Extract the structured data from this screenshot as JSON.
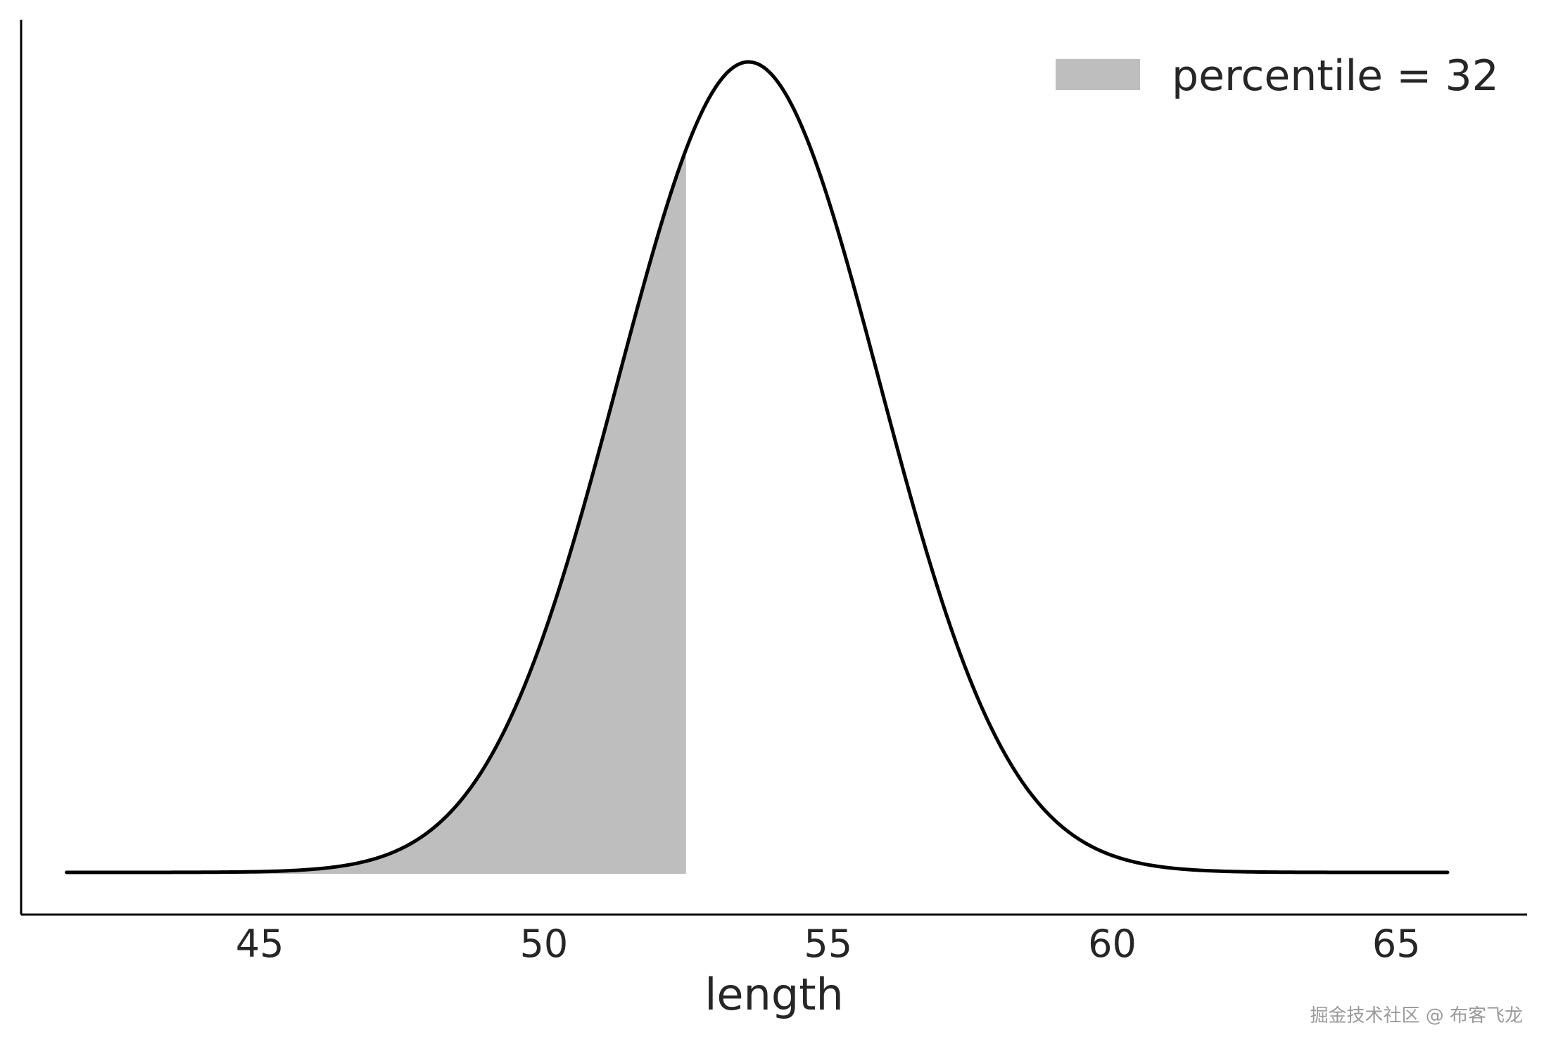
{
  "chart_data": {
    "type": "area",
    "distribution": "normal",
    "mean": 53.6,
    "sd": 2.3,
    "x_start": 41.6,
    "x_end": 65.9,
    "shade_upper": 52.5,
    "xlim": [
      40.8,
      67.3
    ],
    "xticks": [
      45,
      50,
      55,
      60,
      65
    ],
    "xlabel": "length",
    "legend": {
      "label": "percentile = 32",
      "position": "top-right"
    },
    "y_axis_ticks": false,
    "grid": false,
    "colors": {
      "curve": "#000000",
      "fill": "#bebebe",
      "axis": "#000000",
      "text": "#262626"
    }
  },
  "watermark": "掘金技术社区 @ 布客飞龙"
}
